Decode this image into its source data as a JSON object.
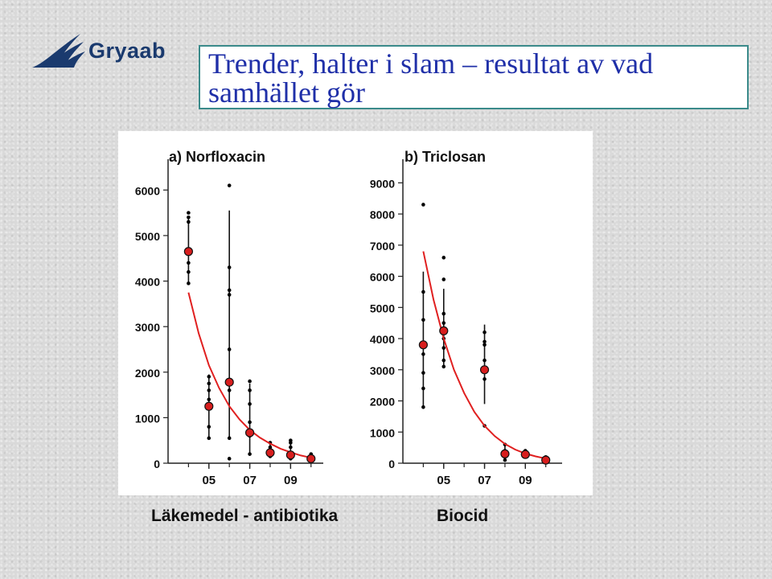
{
  "logo": {
    "text": "Gryaab",
    "icon": "gryaab-wave-logo"
  },
  "slide": {
    "title_line1": "Trender, halter i slam – resultat av vad",
    "title_line2": "samhället gör"
  },
  "captions": {
    "left": "Läkemedel - antibiotika",
    "right": "Biocid"
  },
  "colors": {
    "title": "#1f2fa8",
    "trend": "#e02020",
    "marker": "#d81e1e",
    "points": "#000000",
    "title_border": "#3a8a8a"
  },
  "chart_data": [
    {
      "type": "scatter",
      "title": "a) Norfloxacin",
      "xlabel": "",
      "ylabel": "",
      "xlim": [
        2003,
        2010.6
      ],
      "ylim": [
        0,
        6500
      ],
      "x_ticks": [
        2005,
        2007,
        2009
      ],
      "x_tick_labels": [
        "05",
        "07",
        "09"
      ],
      "y_ticks": [
        0,
        1000,
        2000,
        3000,
        4000,
        5000,
        6000
      ],
      "y_tick_labels": [
        "0",
        "1000",
        "2000",
        "3000",
        "4000",
        "5000",
        "6000"
      ],
      "grid": false,
      "series": [
        {
          "kind": "raw_points",
          "x": [
            2004,
            2004,
            2004,
            2004,
            2004,
            2004,
            2004,
            2005,
            2005,
            2005,
            2005,
            2005,
            2005,
            2005,
            2006,
            2006,
            2006,
            2006,
            2006,
            2006,
            2006,
            2006,
            2007,
            2007,
            2007,
            2007,
            2007,
            2007,
            2008,
            2008,
            2008,
            2008,
            2009,
            2009,
            2009,
            2009,
            2009,
            2010,
            2010,
            2010
          ],
          "y": [
            5500,
            5400,
            5300,
            4700,
            4400,
            4200,
            3950,
            1900,
            1750,
            1600,
            1400,
            1300,
            800,
            550,
            6100,
            4300,
            3800,
            3700,
            2500,
            1600,
            550,
            100,
            1800,
            1600,
            1300,
            900,
            600,
            200,
            450,
            350,
            250,
            150,
            500,
            450,
            350,
            200,
            100,
            200,
            150,
            80
          ]
        },
        {
          "kind": "means",
          "x": [
            2004,
            2005,
            2006,
            2007,
            2008,
            2009,
            2010
          ],
          "y": [
            4650,
            1250,
            1780,
            670,
            230,
            180,
            100
          ]
        },
        {
          "kind": "error_bars",
          "x": [
            2004,
            2005,
            2006,
            2007,
            2008,
            2009,
            2010
          ],
          "low": [
            3950,
            550,
            550,
            200,
            150,
            100,
            80
          ],
          "high": [
            5400,
            1950,
            5550,
            1750,
            450,
            500,
            200
          ]
        },
        {
          "kind": "trend",
          "x": [
            2004,
            2004.5,
            2005,
            2005.5,
            2006,
            2006.5,
            2007,
            2007.5,
            2008,
            2008.5,
            2009,
            2009.5,
            2010
          ],
          "y": [
            3750,
            2850,
            2150,
            1650,
            1250,
            960,
            730,
            560,
            430,
            320,
            240,
            170,
            120
          ]
        }
      ]
    },
    {
      "type": "scatter",
      "title": "b) Triclosan",
      "xlabel": "",
      "ylabel": "",
      "xlim": [
        2003,
        2010.8
      ],
      "ylim": [
        0,
        9500
      ],
      "x_ticks": [
        2005,
        2007,
        2009
      ],
      "x_tick_labels": [
        "05",
        "07",
        "09"
      ],
      "y_ticks": [
        0,
        1000,
        2000,
        3000,
        4000,
        5000,
        6000,
        7000,
        8000,
        9000
      ],
      "y_tick_labels": [
        "0",
        "1000",
        "2000",
        "3000",
        "4000",
        "5000",
        "6000",
        "7000",
        "8000",
        "9000"
      ],
      "grid": false,
      "series": [
        {
          "kind": "raw_points",
          "x": [
            2004,
            2004,
            2004,
            2004,
            2004,
            2004,
            2004,
            2005,
            2005,
            2005,
            2005,
            2005,
            2005,
            2005,
            2005,
            2007,
            2007,
            2007,
            2007,
            2007,
            2007,
            2008,
            2008,
            2008,
            2008,
            2009,
            2009,
            2009,
            2010,
            2010
          ],
          "y": [
            8300,
            5500,
            4600,
            3500,
            2900,
            2400,
            1800,
            6600,
            5900,
            4800,
            4500,
            4000,
            3700,
            3300,
            3100,
            4200,
            3900,
            3800,
            3300,
            2700,
            1200,
            600,
            400,
            200,
            100,
            400,
            300,
            200,
            200,
            100
          ]
        },
        {
          "kind": "means",
          "x": [
            2004,
            2005,
            2007,
            2008,
            2009,
            2010
          ],
          "y": [
            3800,
            4250,
            3000,
            300,
            280,
            100
          ]
        },
        {
          "kind": "error_bars",
          "x": [
            2004,
            2005,
            2007,
            2008,
            2009,
            2010
          ],
          "low": [
            1800,
            3100,
            1900,
            100,
            200,
            50
          ],
          "high": [
            6150,
            5600,
            4450,
            600,
            400,
            200
          ]
        },
        {
          "kind": "trend",
          "x": [
            2004,
            2004.5,
            2005,
            2005.5,
            2006,
            2006.5,
            2007,
            2007.5,
            2008,
            2008.5,
            2009,
            2009.5,
            2010
          ],
          "y": [
            6800,
            5250,
            4000,
            3000,
            2250,
            1650,
            1200,
            870,
            620,
            440,
            310,
            220,
            150
          ]
        }
      ]
    }
  ]
}
